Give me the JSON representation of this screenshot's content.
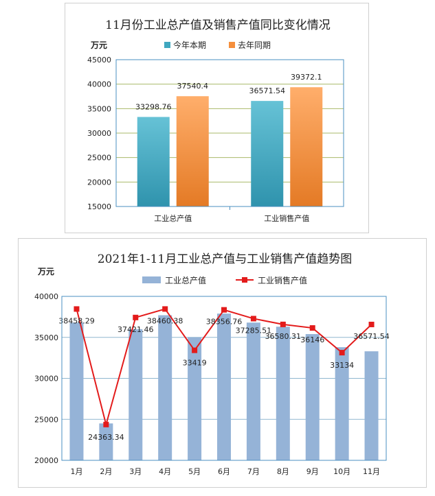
{
  "chart_data": [
    {
      "type": "bar",
      "title": "11月份工业总产值及销售产值同比变化情况",
      "unit": "万元",
      "categories": [
        "工业总产值",
        "工业销售产值"
      ],
      "series": [
        {
          "name": "今年本期",
          "values": [
            33298.76,
            36571.54
          ],
          "value_labels": [
            "33298.76",
            "36571.54"
          ],
          "color": "#3fa7bf"
        },
        {
          "name": "去年同期",
          "values": [
            37540.4,
            39372.1
          ],
          "value_labels": [
            "37540.4",
            "39372.1"
          ],
          "color": "#f58f3c"
        }
      ],
      "ylim": [
        15000,
        45000
      ],
      "yticks": [
        15000,
        20000,
        25000,
        30000,
        35000,
        40000,
        45000
      ],
      "ytick_labels": [
        "15000",
        "20000",
        "25000",
        "30000",
        "35000",
        "40000",
        "45000"
      ],
      "grid": true,
      "legend": "top"
    },
    {
      "type": "bar+line",
      "title": "2021年1-11月工业总产值与工业销售产值趋势图",
      "unit": "万元",
      "categories": [
        "1月",
        "2月",
        "3月",
        "4月",
        "5月",
        "6月",
        "7月",
        "8月",
        "9月",
        "10月",
        "11月"
      ],
      "series": [
        {
          "name": "工业总产值",
          "type": "bar",
          "color": "#95b3d7",
          "values": [
            36800,
            24500,
            36000,
            37700,
            35000,
            37900,
            36800,
            36300,
            35400,
            33800,
            33300
          ]
        },
        {
          "name": "工业销售产值",
          "type": "line",
          "color": "#e31b1b",
          "values": [
            38458.29,
            24363.34,
            37421.46,
            38460.38,
            33419,
            38356.76,
            37285.51,
            36580.31,
            36146,
            33134,
            36571.54
          ],
          "value_labels": [
            "38458.29",
            "24363.34",
            "37421.46",
            "38460.38",
            "33419",
            "38356.76",
            "37285.51",
            "36580.31",
            "36146",
            "33134",
            "36571.54"
          ]
        }
      ],
      "ylim": [
        20000,
        40000
      ],
      "yticks": [
        20000,
        25000,
        30000,
        35000,
        40000
      ],
      "ytick_labels": [
        "20000",
        "25000",
        "30000",
        "35000",
        "40000"
      ],
      "grid": true,
      "legend": "top"
    }
  ]
}
